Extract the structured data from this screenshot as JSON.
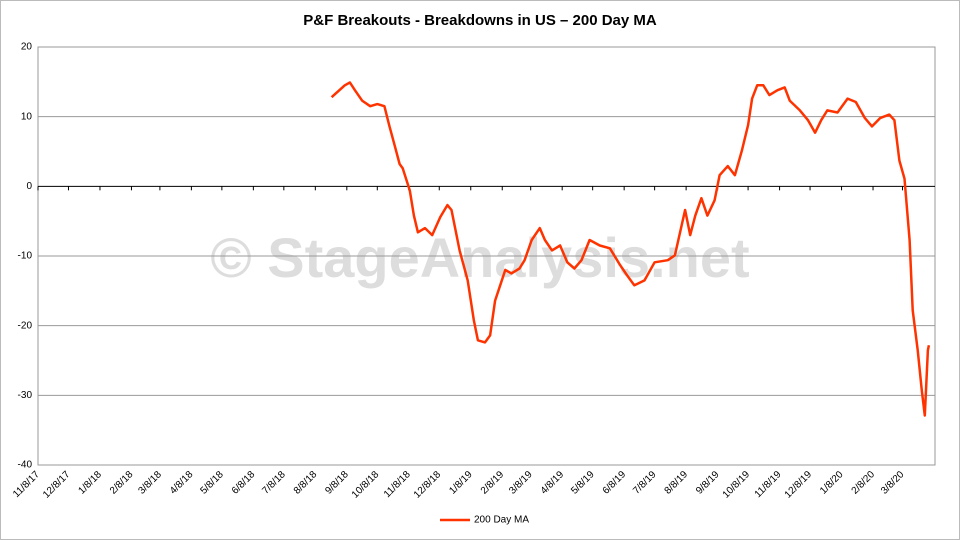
{
  "chart_data": {
    "type": "line",
    "title": "P&F Breakouts - Breakdowns in US – 200 Day MA",
    "watermark": "© StageAnalysis.net",
    "xlim": [
      "11/8/17",
      "4/9/20"
    ],
    "xticks": [
      "11/8/17",
      "12/8/17",
      "1/8/18",
      "2/8/18",
      "3/8/18",
      "4/8/18",
      "5/8/18",
      "6/8/18",
      "7/8/18",
      "8/8/18",
      "9/8/18",
      "10/8/18",
      "11/8/18",
      "12/8/18",
      "1/8/19",
      "2/8/19",
      "3/8/19",
      "4/8/19",
      "5/8/19",
      "6/8/19",
      "7/8/19",
      "8/8/19",
      "9/8/19",
      "10/8/19",
      "11/8/19",
      "12/8/19",
      "1/8/20",
      "2/8/20",
      "3/8/20"
    ],
    "ylim": [
      -40,
      20
    ],
    "yticks": [
      -40,
      -30,
      -20,
      -10,
      0,
      10,
      20
    ],
    "grid": true,
    "legend": "bottom",
    "x": [
      "8/24/18",
      "9/6/18",
      "9/11/18",
      "9/16/18",
      "9/23/18",
      "10/1/18",
      "10/8/18",
      "10/15/18",
      "10/20/18",
      "10/25/18",
      "10/30/18",
      "11/2/18",
      "11/9/18",
      "11/13/18",
      "11/17/18",
      "11/24/18",
      "12/1/18",
      "12/9/18",
      "12/16/18",
      "12/20/18",
      "12/28/18",
      "1/5/19",
      "1/11/19",
      "1/15/19",
      "1/22/19",
      "1/27/19",
      "2/1/19",
      "2/6/19",
      "2/11/19",
      "2/17/19",
      "2/25/19",
      "3/2/19",
      "3/9/19",
      "3/17/19",
      "3/22/19",
      "3/29/19",
      "4/6/19",
      "4/13/19",
      "4/20/19",
      "4/27/19",
      "5/5/19",
      "5/15/19",
      "5/25/19",
      "6/4/19",
      "6/11/19",
      "6/18/19",
      "6/28/19",
      "7/8/19",
      "7/21/19",
      "7/28/19",
      "8/7/19",
      "8/12/19",
      "8/17/19",
      "8/23/19",
      "8/29/19",
      "9/5/19",
      "9/10/19",
      "9/18/19",
      "9/25/19",
      "10/2/19",
      "10/8/19",
      "10/12/19",
      "10/17/19",
      "10/23/19",
      "10/29/19",
      "11/6/19",
      "11/13/19",
      "11/18/19",
      "11/28/19",
      "12/6/19",
      "12/13/19",
      "12/19/19",
      "12/25/19",
      "1/4/20",
      "1/14/20",
      "1/22/20",
      "1/31/20",
      "2/7/20",
      "2/15/20",
      "2/24/20",
      "2/29/20",
      "3/5/20",
      "3/10/20",
      "3/15/20",
      "3/18/20",
      "3/23/20",
      "3/27/20",
      "3/30/20",
      "4/2/20",
      "4/3/20"
    ],
    "series": [
      {
        "name": "200 Day MA",
        "color": "#ff3300",
        "values": [
          12.8,
          14.5,
          14.9,
          13.8,
          12.3,
          11.5,
          11.8,
          11.5,
          8.6,
          5.9,
          3.2,
          2.6,
          -0.6,
          -4.2,
          -6.6,
          -6,
          -7,
          -4.4,
          -2.7,
          -3.4,
          -9.2,
          -13.5,
          -19.2,
          -22.1,
          -22.4,
          -21.4,
          -16.4,
          -14.2,
          -12,
          -12.5,
          -11.8,
          -10.6,
          -7.7,
          -6,
          -7.7,
          -9.2,
          -8.5,
          -10.9,
          -11.8,
          -10.6,
          -7.7,
          -8.5,
          -8.9,
          -11.3,
          -12.8,
          -14.2,
          -13.5,
          -10.9,
          -10.6,
          -9.9,
          -3.4,
          -7,
          -4.2,
          -1.7,
          -4.2,
          -2,
          1.6,
          2.9,
          1.6,
          5.2,
          8.8,
          12.6,
          14.5,
          14.5,
          13.1,
          13.8,
          14.2,
          12.3,
          10.9,
          9.5,
          7.7,
          9.5,
          10.9,
          10.6,
          12.6,
          12.1,
          9.8,
          8.6,
          9.8,
          10.3,
          9.5,
          3.7,
          1.1,
          -7.7,
          -17.8,
          -23.5,
          -29.3,
          -32.9,
          -23.5,
          -22.8
        ]
      }
    ]
  }
}
